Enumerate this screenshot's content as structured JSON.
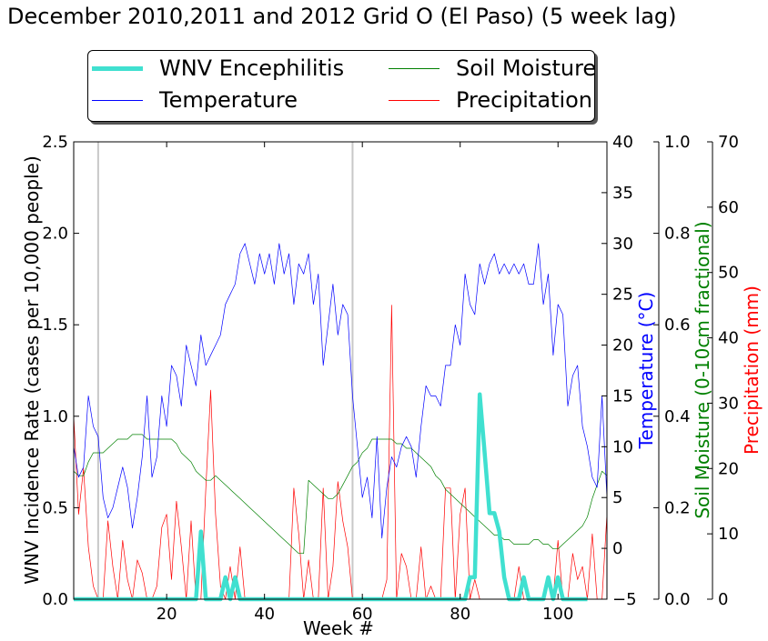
{
  "title": "December 2010,2011 and 2012 Grid O (El Paso) (5 week lag)",
  "legend": {
    "wnv": "WNV Encephilitis",
    "soil": "Soil Moisture",
    "temp": "Temperature",
    "precip": "Precipitation"
  },
  "colors": {
    "wnv": "#40e0d0",
    "temp": "#0000ff",
    "soil": "#008000",
    "precip": "#ff0000",
    "vline": "#c8c8c8"
  },
  "chart_data": {
    "type": "line",
    "title": "December 2010,2011 and 2012 Grid O (El Paso) (5 week lag)",
    "xlabel": "Week #",
    "xlim": [
      1,
      110
    ],
    "x_ticks": [
      20,
      40,
      60,
      80,
      100
    ],
    "vertical_lines_x": [
      6,
      58
    ],
    "axes": {
      "left": {
        "label": "WNV Incidence Rate (cases per 10,000 people)",
        "ylim": [
          0,
          2.5
        ],
        "ticks": [
          0.0,
          0.5,
          1.0,
          1.5,
          2.0,
          2.5
        ],
        "tick_labels": [
          "0.0",
          "0.5",
          "1.0",
          "1.5",
          "2.0",
          "2.5"
        ]
      },
      "temperature": {
        "label": "Temperature ($^\\circ$C)",
        "display_label": "Temperature (°C)",
        "ylim": [
          -5,
          40
        ],
        "ticks": [
          -5,
          0,
          5,
          10,
          15,
          20,
          25,
          30,
          35,
          40
        ],
        "tick_labels": [
          "−5",
          "0",
          "5",
          "10",
          "15",
          "20",
          "25",
          "30",
          "35",
          "40"
        ]
      },
      "soil": {
        "label": "Soil Moisture (0-10cm fractional)",
        "ylim": [
          0,
          1
        ],
        "ticks": [
          0.0,
          0.2,
          0.4,
          0.6,
          0.8,
          1.0
        ],
        "tick_labels": [
          "0.0",
          "0.2",
          "0.4",
          "0.6",
          "0.8",
          "1.0"
        ]
      },
      "precip": {
        "label": "Precipitation (mm)",
        "ylim": [
          0,
          70
        ],
        "ticks": [
          0,
          10,
          20,
          30,
          40,
          50,
          60,
          70
        ],
        "tick_labels": [
          "0",
          "10",
          "20",
          "30",
          "40",
          "50",
          "60",
          "70"
        ]
      }
    },
    "x": [
      1,
      2,
      3,
      4,
      5,
      6,
      7,
      8,
      9,
      10,
      11,
      12,
      13,
      14,
      15,
      16,
      17,
      18,
      19,
      20,
      21,
      22,
      23,
      24,
      25,
      26,
      27,
      28,
      29,
      30,
      31,
      32,
      33,
      34,
      35,
      36,
      37,
      38,
      39,
      40,
      41,
      42,
      43,
      44,
      45,
      46,
      47,
      48,
      49,
      50,
      51,
      52,
      53,
      54,
      55,
      56,
      57,
      58,
      59,
      60,
      61,
      62,
      63,
      64,
      65,
      66,
      67,
      68,
      69,
      70,
      71,
      72,
      73,
      74,
      75,
      76,
      77,
      78,
      79,
      80,
      81,
      82,
      83,
      84,
      85,
      86,
      87,
      88,
      89,
      90,
      91,
      92,
      93,
      94,
      95,
      96,
      97,
      98,
      99,
      100,
      101,
      102,
      103,
      104,
      105,
      106,
      107,
      108,
      109,
      110
    ],
    "series": [
      {
        "name": "WNV Encephilitis",
        "axis": "left",
        "values": [
          0,
          0,
          0,
          0,
          0,
          0,
          0,
          0,
          0,
          0,
          0,
          0,
          0,
          0,
          0,
          0,
          0,
          0,
          0,
          0,
          0,
          0,
          0,
          0,
          0,
          0,
          0.37,
          0,
          0,
          0,
          0,
          0.12,
          0,
          0.12,
          0,
          0,
          0,
          0,
          0,
          0,
          0,
          0,
          0,
          0,
          0,
          0,
          0,
          0,
          0,
          0,
          0,
          0,
          0,
          0,
          0,
          0,
          0,
          0,
          0,
          0,
          0,
          0,
          0,
          0,
          0,
          0,
          0,
          0,
          0,
          0,
          0,
          0,
          0,
          0,
          0,
          0,
          0,
          0,
          0,
          0,
          0,
          0.12,
          0.12,
          1.12,
          0.8,
          0.47,
          0.47,
          0.37,
          0.12,
          0,
          0,
          0,
          0.12,
          0,
          0,
          0,
          0,
          0.12,
          0,
          0.12,
          0,
          0,
          0,
          0,
          0,
          0,
          null,
          null,
          null,
          null
        ]
      },
      {
        "name": "Temperature",
        "axis": "temperature",
        "values": [
          10,
          7,
          8,
          15,
          12,
          11,
          5,
          3,
          4,
          6,
          8,
          6,
          2,
          5,
          9,
          15,
          7,
          9,
          15,
          12,
          18,
          17,
          14,
          20,
          18,
          16,
          21,
          18,
          19,
          20,
          21,
          24,
          25,
          26,
          29,
          30,
          28,
          26,
          29,
          27,
          29,
          26,
          30,
          27,
          29,
          24,
          28,
          27,
          29,
          24,
          27,
          18,
          22,
          26,
          21,
          24,
          23,
          15,
          10,
          5,
          7,
          3,
          11,
          1,
          6,
          9,
          8,
          10,
          11,
          10,
          7,
          12,
          16,
          15,
          15,
          14,
          18,
          18,
          22,
          20,
          27,
          24,
          23,
          28,
          26,
          28,
          29,
          27,
          28,
          27,
          28,
          27,
          28,
          26,
          26,
          30,
          24,
          27,
          19,
          24,
          23,
          14,
          17,
          18,
          12,
          10,
          7,
          6,
          15,
          5
        ]
      },
      {
        "name": "Soil Moisture",
        "axis": "soil",
        "values": [
          0.28,
          0.27,
          0.27,
          0.3,
          0.32,
          0.32,
          0.32,
          0.33,
          0.34,
          0.35,
          0.35,
          0.35,
          0.36,
          0.36,
          0.36,
          0.35,
          0.35,
          0.35,
          0.35,
          0.35,
          0.35,
          0.34,
          0.32,
          0.31,
          0.3,
          0.28,
          0.27,
          0.26,
          0.26,
          0.27,
          0.26,
          0.25,
          0.24,
          0.23,
          0.22,
          0.21,
          0.2,
          0.19,
          0.18,
          0.17,
          0.16,
          0.15,
          0.14,
          0.13,
          0.12,
          0.11,
          0.1,
          0.1,
          0.26,
          0.25,
          0.24,
          0.23,
          0.22,
          0.22,
          0.23,
          0.25,
          0.27,
          0.29,
          0.3,
          0.32,
          0.33,
          0.35,
          0.35,
          0.35,
          0.35,
          0.35,
          0.34,
          0.34,
          0.33,
          0.33,
          0.32,
          0.31,
          0.3,
          0.29,
          0.27,
          0.26,
          0.24,
          0.23,
          0.22,
          0.21,
          0.2,
          0.19,
          0.18,
          0.17,
          0.16,
          0.15,
          0.14,
          0.14,
          0.13,
          0.13,
          0.12,
          0.12,
          0.12,
          0.12,
          0.13,
          0.13,
          0.12,
          0.12,
          0.11,
          0.11,
          0.12,
          0.13,
          0.14,
          0.15,
          0.16,
          0.18,
          0.22,
          0.25,
          0.28,
          0.27
        ]
      },
      {
        "name": "Precipitation",
        "axis": "precip",
        "values": [
          28,
          13,
          20,
          8,
          2,
          0,
          0,
          12,
          5,
          0,
          9,
          3,
          0,
          6,
          4,
          0,
          0,
          2,
          11,
          13,
          3,
          15,
          8,
          0,
          12,
          0,
          0,
          17,
          32,
          13,
          2,
          0,
          5,
          0,
          8,
          0,
          0,
          0,
          0,
          0,
          0,
          0,
          0,
          0,
          0,
          17,
          10,
          0,
          6,
          0,
          0,
          17,
          0,
          5,
          18,
          12,
          8,
          0,
          0,
          0,
          0,
          0,
          0,
          0,
          3,
          45,
          0,
          7,
          5,
          0,
          0,
          8,
          0,
          2,
          0,
          0,
          17,
          17,
          0,
          13,
          17,
          0,
          3,
          0,
          0,
          0,
          0,
          0,
          0,
          0,
          0,
          5,
          0,
          0,
          0,
          0,
          0,
          0,
          0,
          9,
          0,
          0,
          7,
          3,
          5,
          0,
          10,
          0,
          0,
          13
        ]
      }
    ]
  }
}
